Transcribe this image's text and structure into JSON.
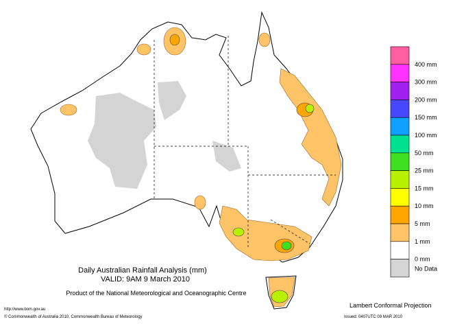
{
  "map": {
    "title": "Daily Australian Rainfall Analysis (mm)",
    "valid": "VALID: 9AM  9 March 2010",
    "product": "Product of the National Meteorological and Oceanographic Centre",
    "url": "http://www.bom.gov.au",
    "copyright": "© Commonwealth of Australia 2010, Commonwealth Bureau of Meteorology",
    "projection": "Lambert Conformal Projection",
    "issued": "Issued: 0407UTC 09 MAR 2010"
  },
  "legend": [
    {
      "color": "#ff5fa0"
    },
    {
      "label": "400 mm",
      "color": "#ff33ff"
    },
    {
      "label": "300 mm",
      "color": "#a020f0"
    },
    {
      "label": "200 mm",
      "color": "#4848ff"
    },
    {
      "label": "150 mm",
      "color": "#10a0ff"
    },
    {
      "label": "100 mm",
      "color": "#00e090"
    },
    {
      "label": "50 mm",
      "color": "#40e020"
    },
    {
      "label": "25 mm",
      "color": "#b8f000"
    },
    {
      "label": "15 mm",
      "color": "#ffff00"
    },
    {
      "label": "10 mm",
      "color": "#ffa500"
    },
    {
      "label": "5 mm",
      "color": "#ffc468"
    },
    {
      "label": "1 mm",
      "color": "#ffffff"
    },
    {
      "label": "0 mm",
      "color": "#d4d4d4"
    },
    {
      "label": "No Data"
    }
  ]
}
